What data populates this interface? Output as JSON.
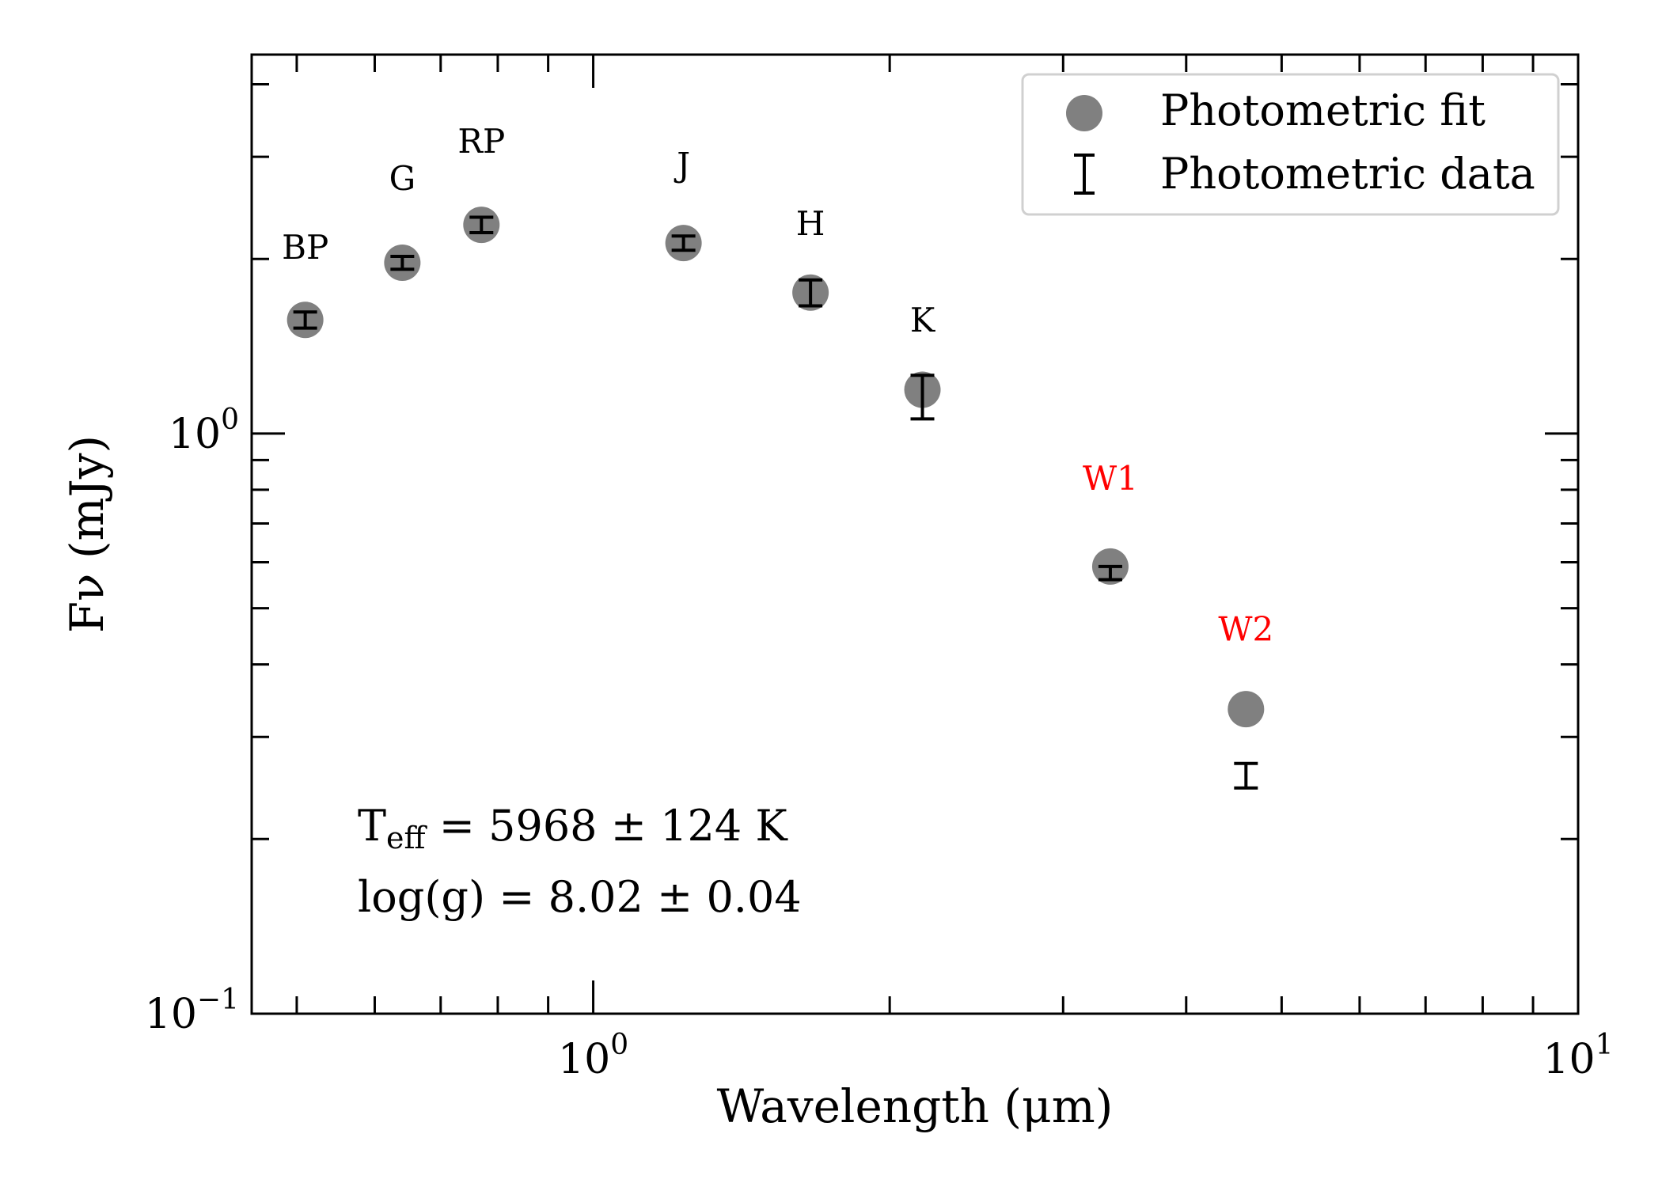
{
  "chart_data": {
    "type": "scatter",
    "xscale": "log",
    "yscale": "log",
    "xlim": [
      0.45,
      10
    ],
    "ylim": [
      0.1,
      4.5
    ],
    "xlabel": "Wavelength (μm)",
    "ylabel": "Fν (mJy)",
    "x_ticks": [
      {
        "value": 1,
        "base": "10",
        "exp": "0"
      },
      {
        "value": 10,
        "base": "10",
        "exp": "1"
      }
    ],
    "y_ticks": [
      {
        "value": 0.1,
        "base": "10",
        "exp": "−1"
      },
      {
        "value": 1,
        "base": "10",
        "exp": "0"
      }
    ],
    "legend": {
      "position": "top-right",
      "entries": [
        {
          "label": "Photometric fit",
          "marker": "circle"
        },
        {
          "label": "Photometric data",
          "marker": "errorbar"
        }
      ]
    },
    "series": [
      {
        "name": "Photometric fit",
        "color": "#808080",
        "points": [
          {
            "band": "BP",
            "x": 0.51,
            "y": 1.57
          },
          {
            "band": "G",
            "x": 0.64,
            "y": 1.97
          },
          {
            "band": "RP",
            "x": 0.77,
            "y": 2.29
          },
          {
            "band": "J",
            "x": 1.235,
            "y": 2.13
          },
          {
            "band": "H",
            "x": 1.662,
            "y": 1.75
          },
          {
            "band": "K",
            "x": 2.159,
            "y": 1.19
          },
          {
            "band": "W1",
            "x": 3.35,
            "y": 0.59
          },
          {
            "band": "W2",
            "x": 4.6,
            "y": 0.335
          }
        ]
      },
      {
        "name": "Photometric data",
        "color": "#000000",
        "points": [
          {
            "band": "BP",
            "x": 0.51,
            "y": 1.57,
            "ylow": 1.52,
            "yhigh": 1.62
          },
          {
            "band": "G",
            "x": 0.64,
            "y": 1.97,
            "ylow": 1.92,
            "yhigh": 2.02
          },
          {
            "band": "RP",
            "x": 0.77,
            "y": 2.29,
            "ylow": 2.22,
            "yhigh": 2.36
          },
          {
            "band": "J",
            "x": 1.235,
            "y": 2.13,
            "ylow": 2.07,
            "yhigh": 2.19
          },
          {
            "band": "H",
            "x": 1.662,
            "y": 1.75,
            "ylow": 1.66,
            "yhigh": 1.84
          },
          {
            "band": "K",
            "x": 2.159,
            "y": 1.16,
            "ylow": 1.06,
            "yhigh": 1.26
          },
          {
            "band": "W1",
            "x": 3.35,
            "y": 0.575,
            "ylow": 0.56,
            "yhigh": 0.59
          },
          {
            "band": "W2",
            "x": 4.6,
            "y": 0.255,
            "ylow": 0.245,
            "yhigh": 0.27
          }
        ]
      }
    ],
    "band_labels": [
      {
        "text": "BP",
        "x": 0.51,
        "y": 2.0,
        "color": "#000000"
      },
      {
        "text": "G",
        "x": 0.64,
        "y": 2.63,
        "color": "#000000"
      },
      {
        "text": "RP",
        "x": 0.77,
        "y": 3.05,
        "color": "#000000"
      },
      {
        "text": "J",
        "x": 1.235,
        "y": 2.78,
        "color": "#000000"
      },
      {
        "text": "H",
        "x": 1.662,
        "y": 2.2,
        "color": "#000000"
      },
      {
        "text": "K",
        "x": 2.159,
        "y": 1.5,
        "color": "#000000"
      },
      {
        "text": "W1",
        "x": 3.35,
        "y": 0.8,
        "color": "#ff0000"
      },
      {
        "text": "W2",
        "x": 4.6,
        "y": 0.44,
        "color": "#ff0000"
      }
    ],
    "annotations": {
      "teff_prefix": "T",
      "teff_sub": "eff",
      "teff_value": " = 5968 ± 124 K",
      "logg": "log(g) = 8.02 ± 0.04"
    }
  }
}
